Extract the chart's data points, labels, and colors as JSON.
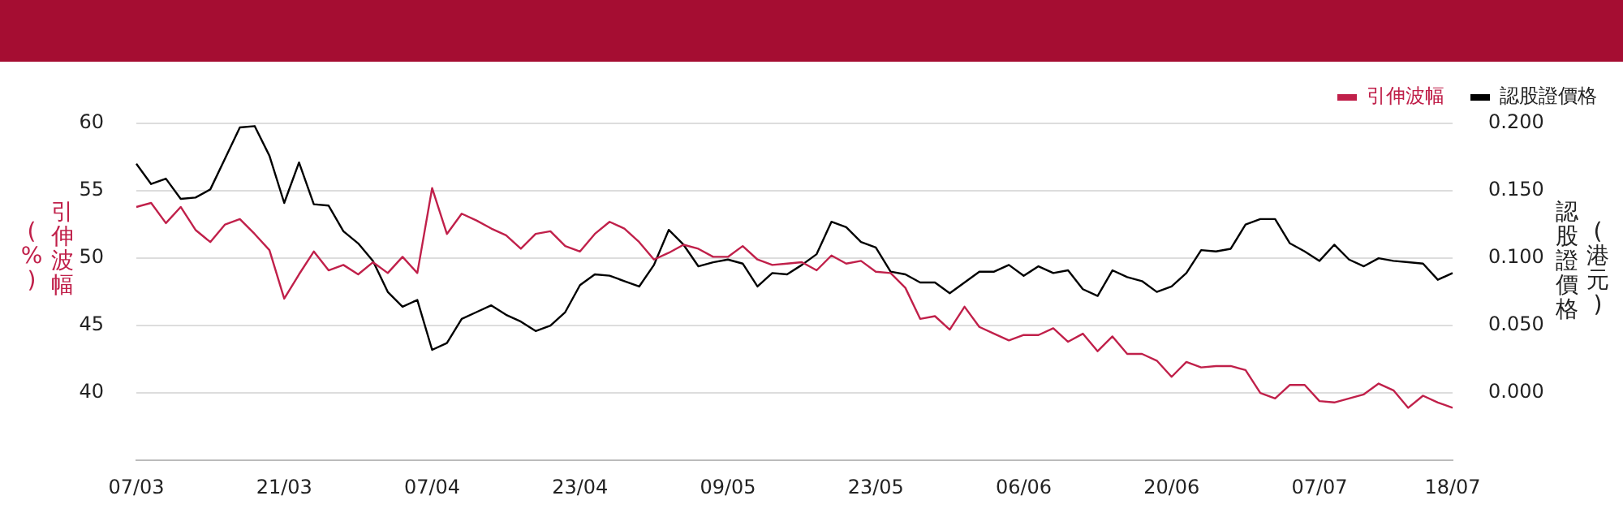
{
  "chart_data": {
    "type": "line",
    "categories": [
      "07/03",
      null,
      null,
      null,
      null,
      null,
      null,
      null,
      null,
      null,
      "21/03",
      null,
      null,
      null,
      null,
      null,
      null,
      null,
      null,
      null,
      "07/04",
      null,
      null,
      null,
      null,
      null,
      null,
      null,
      null,
      null,
      "23/04",
      null,
      null,
      null,
      null,
      null,
      null,
      null,
      null,
      null,
      "09/05",
      null,
      null,
      null,
      null,
      null,
      null,
      null,
      null,
      null,
      "23/05",
      null,
      null,
      null,
      null,
      null,
      null,
      null,
      null,
      null,
      "06/06",
      null,
      null,
      null,
      null,
      null,
      null,
      null,
      null,
      null,
      "20/06",
      null,
      null,
      null,
      null,
      null,
      null,
      null,
      null,
      null,
      "07/07",
      null,
      null,
      null,
      null,
      null,
      null,
      null,
      null,
      "18/07"
    ],
    "series": [
      {
        "name": "引伸波幅",
        "color": "#c0204a",
        "values": [
          53.8,
          54.1,
          52.6,
          53.8,
          52.1,
          51.2,
          52.5,
          52.9,
          51.8,
          50.6,
          47.0,
          48.8,
          50.5,
          49.1,
          49.5,
          48.8,
          49.7,
          48.9,
          50.1,
          48.9,
          55.2,
          51.8,
          53.3,
          52.8,
          52.2,
          51.7,
          50.7,
          51.8,
          52.0,
          50.9,
          50.5,
          51.8,
          52.7,
          52.2,
          51.2,
          49.9,
          50.4,
          51.0,
          50.7,
          50.1,
          50.1,
          50.9,
          49.9,
          49.5,
          49.6,
          49.7,
          49.1,
          50.2,
          49.6,
          49.8,
          49.0,
          48.9,
          47.8,
          45.5,
          45.7,
          44.7,
          46.4,
          44.9,
          44.4,
          43.9,
          44.3,
          44.3,
          44.8,
          43.8,
          44.4,
          43.1,
          44.2,
          42.9,
          42.9,
          42.4,
          41.2,
          42.3,
          41.9,
          42.0,
          42.0,
          41.7,
          40.0,
          39.6,
          40.6,
          40.6,
          39.4,
          39.3,
          39.6,
          39.9,
          40.7,
          40.2,
          38.9,
          39.8,
          39.3,
          38.9
        ]
      },
      {
        "name": "認股證價格",
        "color": "#000000",
        "axis": "y2",
        "values": [
          0.17,
          0.155,
          0.159,
          0.144,
          0.145,
          0.151,
          0.174,
          0.197,
          0.198,
          0.176,
          0.141,
          0.171,
          0.14,
          0.139,
          0.12,
          0.111,
          0.098,
          0.075,
          0.064,
          0.069,
          0.032,
          0.037,
          0.055,
          0.06,
          0.065,
          0.058,
          0.053,
          0.046,
          0.05,
          0.06,
          0.08,
          0.088,
          0.087,
          0.083,
          0.079,
          0.095,
          0.121,
          0.11,
          0.094,
          0.097,
          0.099,
          0.096,
          0.079,
          0.089,
          0.088,
          0.095,
          0.103,
          0.127,
          0.123,
          0.112,
          0.108,
          0.09,
          0.088,
          0.082,
          0.082,
          0.074,
          0.082,
          0.09,
          0.09,
          0.095,
          0.087,
          0.094,
          0.089,
          0.091,
          0.077,
          0.072,
          0.091,
          0.086,
          0.083,
          0.075,
          0.079,
          0.089,
          0.106,
          0.105,
          0.107,
          0.125,
          0.129,
          0.129,
          0.111,
          0.105,
          0.098,
          0.11,
          0.099,
          0.094,
          0.1,
          0.098,
          0.097,
          0.096,
          0.084,
          0.089
        ]
      }
    ],
    "ylabel": "引伸波幅 (%)",
    "y2label": "認股證價格 (港元)",
    "ylim": [
      35,
      60
    ],
    "yticks": [
      40,
      45,
      50,
      55,
      60
    ],
    "y2lim": [
      -0.05,
      0.2
    ],
    "y2ticks": [
      {
        "value": 0,
        "label": "0.000"
      },
      {
        "value": 0.05,
        "label": "0.050"
      },
      {
        "value": 0.1,
        "label": "0.100"
      },
      {
        "value": 0.15,
        "label": "0.150"
      },
      {
        "value": 0.2,
        "label": "0.200"
      }
    ],
    "grid": "y",
    "legend": "top right",
    "marker": "none",
    "line_style": "solid"
  }
}
